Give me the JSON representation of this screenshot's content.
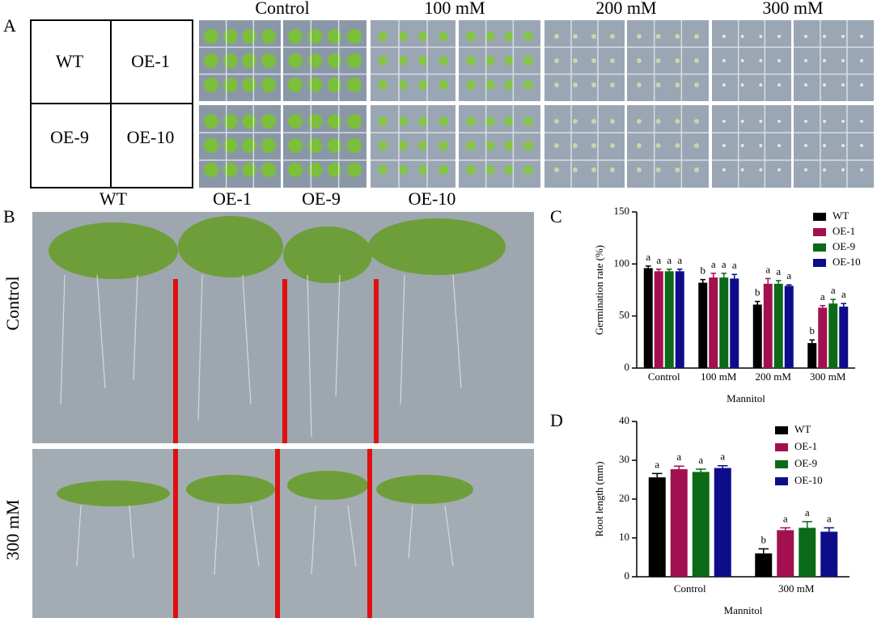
{
  "panel_a": {
    "label": "A",
    "key": [
      "WT",
      "OE-1",
      "OE-9",
      "OE-10"
    ],
    "conditions": [
      "Control",
      "100 mM",
      "200 mM",
      "300 mM"
    ]
  },
  "panel_b": {
    "label": "B",
    "lines": [
      "WT",
      "OE-1",
      "OE-9",
      "OE-10"
    ],
    "treatments": [
      "Control",
      "300 mM"
    ]
  },
  "chart_data": [
    {
      "type": "bar",
      "label": "C",
      "ylabel": "Germination rate (%)",
      "xlabel": "Mannitol",
      "categories": [
        "Control",
        "100 mM",
        "200 mM",
        "300 mM"
      ],
      "ylim": [
        0,
        150
      ],
      "yticks": [
        0,
        50,
        100,
        150
      ],
      "series": [
        {
          "name": "WT",
          "color": "#000000",
          "values": [
            96,
            82,
            61,
            24
          ],
          "errors": [
            2,
            3,
            3,
            3
          ],
          "letters": [
            "a",
            "b",
            "b",
            "b"
          ]
        },
        {
          "name": "OE-1",
          "color": "#a3104f",
          "values": [
            93,
            87,
            81,
            58
          ],
          "errors": [
            2,
            4,
            5,
            2
          ],
          "letters": [
            "a",
            "a",
            "a",
            "a"
          ]
        },
        {
          "name": "OE-9",
          "color": "#0b6a18",
          "values": [
            93,
            87,
            81,
            62
          ],
          "errors": [
            2,
            4,
            3,
            4
          ],
          "letters": [
            "a",
            "a",
            "a",
            "a"
          ]
        },
        {
          "name": "OE-10",
          "color": "#0d0d8a",
          "values": [
            93,
            86,
            79,
            59
          ],
          "errors": [
            2,
            4,
            1,
            3
          ],
          "letters": [
            "a",
            "a",
            "a",
            "a"
          ]
        }
      ]
    },
    {
      "type": "bar",
      "label": "D",
      "ylabel": "Root length (mm)",
      "xlabel": "Mannitol",
      "categories": [
        "Control",
        "300 mM"
      ],
      "ylim": [
        0,
        40
      ],
      "yticks": [
        0,
        10,
        20,
        30,
        40
      ],
      "series": [
        {
          "name": "WT",
          "color": "#000000",
          "values": [
            25.6,
            6.0
          ],
          "errors": [
            1.0,
            1.2
          ],
          "letters": [
            "a",
            "b"
          ]
        },
        {
          "name": "OE-1",
          "color": "#a3104f",
          "values": [
            27.7,
            12.0
          ],
          "errors": [
            0.8,
            0.6
          ],
          "letters": [
            "a",
            "a"
          ]
        },
        {
          "name": "OE-9",
          "color": "#0b6a18",
          "values": [
            27.0,
            12.6
          ],
          "errors": [
            0.7,
            1.6
          ],
          "letters": [
            "a",
            "a"
          ]
        },
        {
          "name": "OE-10",
          "color": "#0d0d8a",
          "values": [
            28.0,
            11.6
          ],
          "errors": [
            0.6,
            1.0
          ],
          "letters": [
            "a",
            "a"
          ]
        }
      ]
    }
  ]
}
